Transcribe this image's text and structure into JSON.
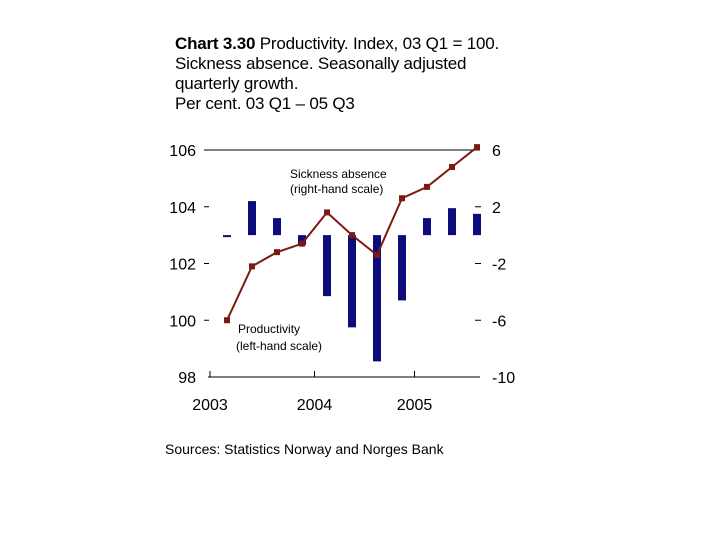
{
  "title": {
    "bold": "Chart 3.30",
    "line1_rest": " Productivity. Index, 03 Q1 = 100.",
    "line2": "Sickness absence. Seasonally adjusted",
    "line3": "quarterly growth.",
    "line4": "Per cent.  03 Q1 – 05 Q3"
  },
  "source": "Sources: Statistics Norway and Norges Bank",
  "chart_data": {
    "type": "bar+line",
    "x_labels": [
      "2003",
      "2004",
      "2005"
    ],
    "periods": [
      "03 Q1",
      "03 Q2",
      "03 Q3",
      "03 Q4",
      "04 Q1",
      "04 Q2",
      "04 Q3",
      "04 Q4",
      "05 Q1",
      "05 Q2",
      "05 Q3"
    ],
    "left_axis": {
      "ticks": [
        "106",
        "104",
        "102",
        "100",
        "98"
      ],
      "range": [
        98,
        106
      ]
    },
    "right_axis": {
      "ticks": [
        "6",
        "2",
        "-2",
        "-6",
        "-10"
      ],
      "range": [
        -10,
        6
      ]
    },
    "series": [
      {
        "name": "Sickness absence\n(right-hand scale)",
        "label_lines": [
          "Sickness absence",
          "(right-hand scale)"
        ],
        "kind": "bar",
        "axis": "right",
        "color": "#0c0c7c",
        "values": [
          -0.1,
          2.4,
          1.2,
          -0.7,
          -4.3,
          -6.5,
          -8.9,
          -4.6,
          1.2,
          1.9,
          1.5
        ]
      },
      {
        "name": "Productivity\n(left-hand scale)",
        "label_lines": [
          "Productivity",
          "(left-hand scale)"
        ],
        "kind": "line",
        "axis": "left",
        "color": "#7a1a12",
        "values": [
          100.0,
          101.9,
          102.4,
          102.7,
          103.8,
          103.0,
          102.3,
          104.3,
          104.7,
          105.4,
          106.1
        ]
      }
    ]
  }
}
